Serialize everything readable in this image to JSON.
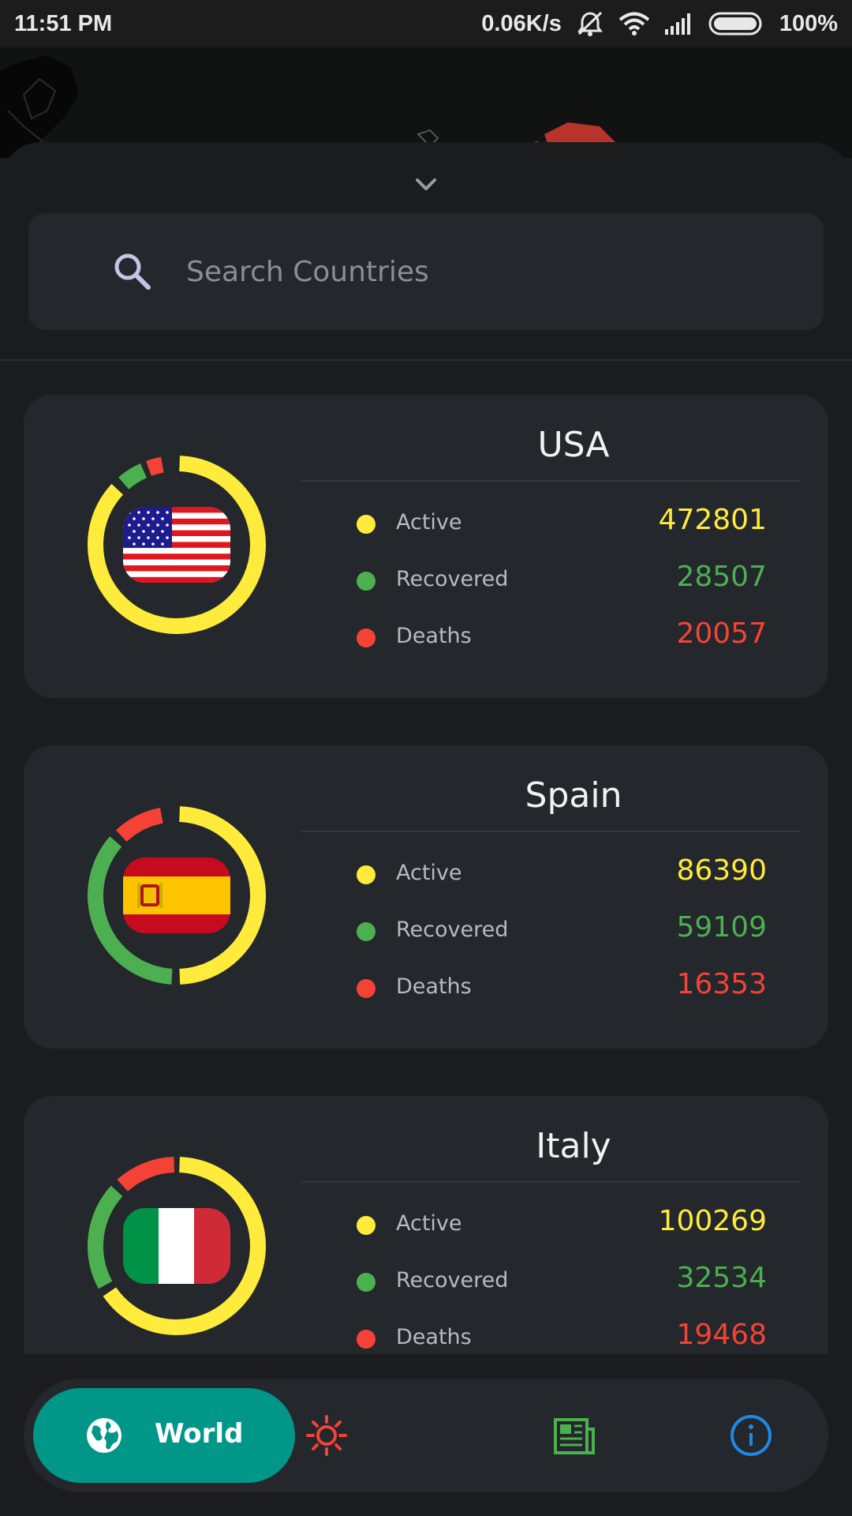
{
  "status_bar": {
    "time": "11:51 PM",
    "net_speed": "0.06K/s",
    "battery": "100%"
  },
  "search": {
    "placeholder": "Search Countries"
  },
  "legend": {
    "active_label": "Active",
    "recovered_label": "Recovered",
    "deaths_label": "Deaths"
  },
  "colors": {
    "active": "#ffeb3b",
    "recovered": "#4caf50",
    "deaths": "#f44336",
    "nav_active": "#009688"
  },
  "countries": [
    {
      "name": "USA",
      "flag": "us-flag",
      "active": "472801",
      "recovered": "28507",
      "deaths": "20057"
    },
    {
      "name": "Spain",
      "flag": "spain-flag",
      "active": "86390",
      "recovered": "59109",
      "deaths": "16353"
    },
    {
      "name": "Italy",
      "flag": "italy-flag",
      "active": "100269",
      "recovered": "32534",
      "deaths": "19468"
    }
  ],
  "nav": {
    "world_label": "World",
    "items": [
      "globe-icon",
      "sun-icon",
      "newspaper-icon",
      "info-icon"
    ]
  }
}
